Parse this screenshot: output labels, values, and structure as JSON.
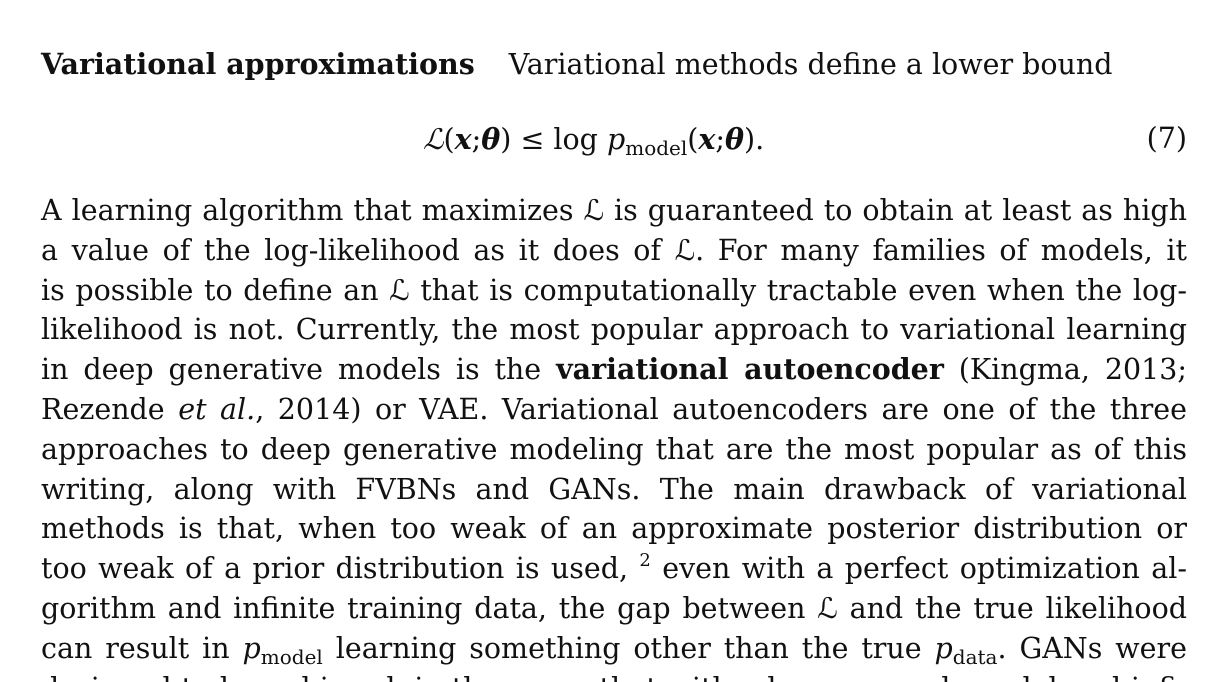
{
  "section": {
    "heading": "Variational approximations",
    "intro": "Variational methods define a lower bound"
  },
  "equation": {
    "lhs": "ℒ",
    "args_open": "(",
    "x": "x",
    "sep": ";",
    "theta": "θ",
    "args_close": ")",
    "rel": " ≤ log ",
    "p": "p",
    "p_sub": "model",
    "tail": ".",
    "number": "(7)"
  },
  "paragraph": {
    "lines": [
      "A learning algorithm that maximizes ℒ is guaranteed to obtain at least as high",
      "a value of the log-likelihood as it does of ℒ.  For many families of models, it",
      "is possible to define an ℒ that is computationally tractable even when the log-",
      "likelihood is not. Currently, the most popular approach to variational learning"
    ],
    "line5_pre": "in deep generative models is the ",
    "line5_bold": "variational autoencoder",
    "line5_post": " (Kingma, 2013;",
    "line6_pre": "Rezende ",
    "line6_ital": "et al.",
    "line6_post": ", 2014) or VAE. Variational autoencoders are one of the three",
    "lines_b": [
      "approaches to deep generative modeling that are the most popular as of this",
      "writing, along with FVBNs and GANs.  The main drawback of variational",
      "methods is that, when too weak of an approximate posterior distribution or"
    ],
    "line10_pre": "too weak of a prior distribution is used, ",
    "line10_sup": "2",
    "line10_post": " even with a perfect optimization al-",
    "line11": "gorithm and infinite training data, the gap between ℒ and the true likelihood",
    "line12_pre": "can result in ",
    "line12_p1": "p",
    "line12_p1_sub": "model",
    "line12_mid": " learning something other than the true ",
    "line12_p2": "p",
    "line12_p2_sub": "data",
    "line12_post": ".  GANs were",
    "line13": "designed to be unbiased, in the sense that with a large enough model and infi-"
  }
}
